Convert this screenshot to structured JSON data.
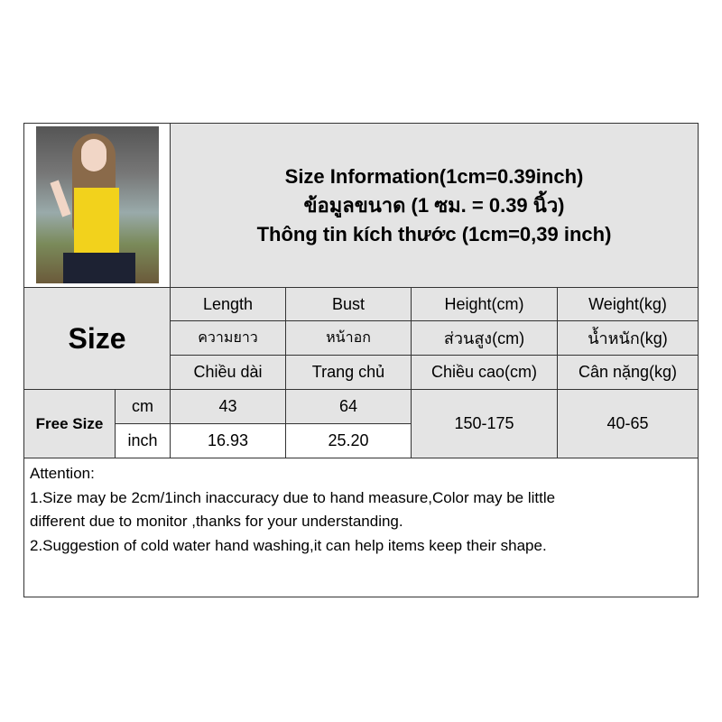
{
  "title": {
    "line1": "Size Information(1cm=0.39inch)",
    "line2": "ข้อมูลขนาด (1 ซม. = 0.39 นิ้ว)",
    "line3": "Thông tin kích thước (1cm=0,39 inch)"
  },
  "size_label": "Size",
  "columns": [
    {
      "en": "Length",
      "th": "ความยาว",
      "vi": "Chiều dài"
    },
    {
      "en": "Bust",
      "th": "หน้าอก",
      "vi": "Trang chủ"
    },
    {
      "en": "Height(cm)",
      "th": "ส่วนสูง(cm)",
      "vi": "Chiều cao(cm)"
    },
    {
      "en": "Weight(kg)",
      "th": "น้ำหนัก(kg)",
      "vi": "Cân nặng(kg)"
    }
  ],
  "rows": {
    "size_name": "Free Size",
    "cm": {
      "unit": "cm",
      "length": "43",
      "bust": "64"
    },
    "inch": {
      "unit": "inch",
      "length": "16.93",
      "bust": "25.20"
    },
    "height": "150-175",
    "weight": "40-65"
  },
  "notes": {
    "heading": "Attention:",
    "line1": "1.Size may be 2cm/1inch inaccuracy due to hand measure,Color may be little",
    "line2": "different due to monitor ,thanks for your understanding.",
    "line3": "2.Suggestion of cold water hand washing,it can help items keep their shape."
  }
}
